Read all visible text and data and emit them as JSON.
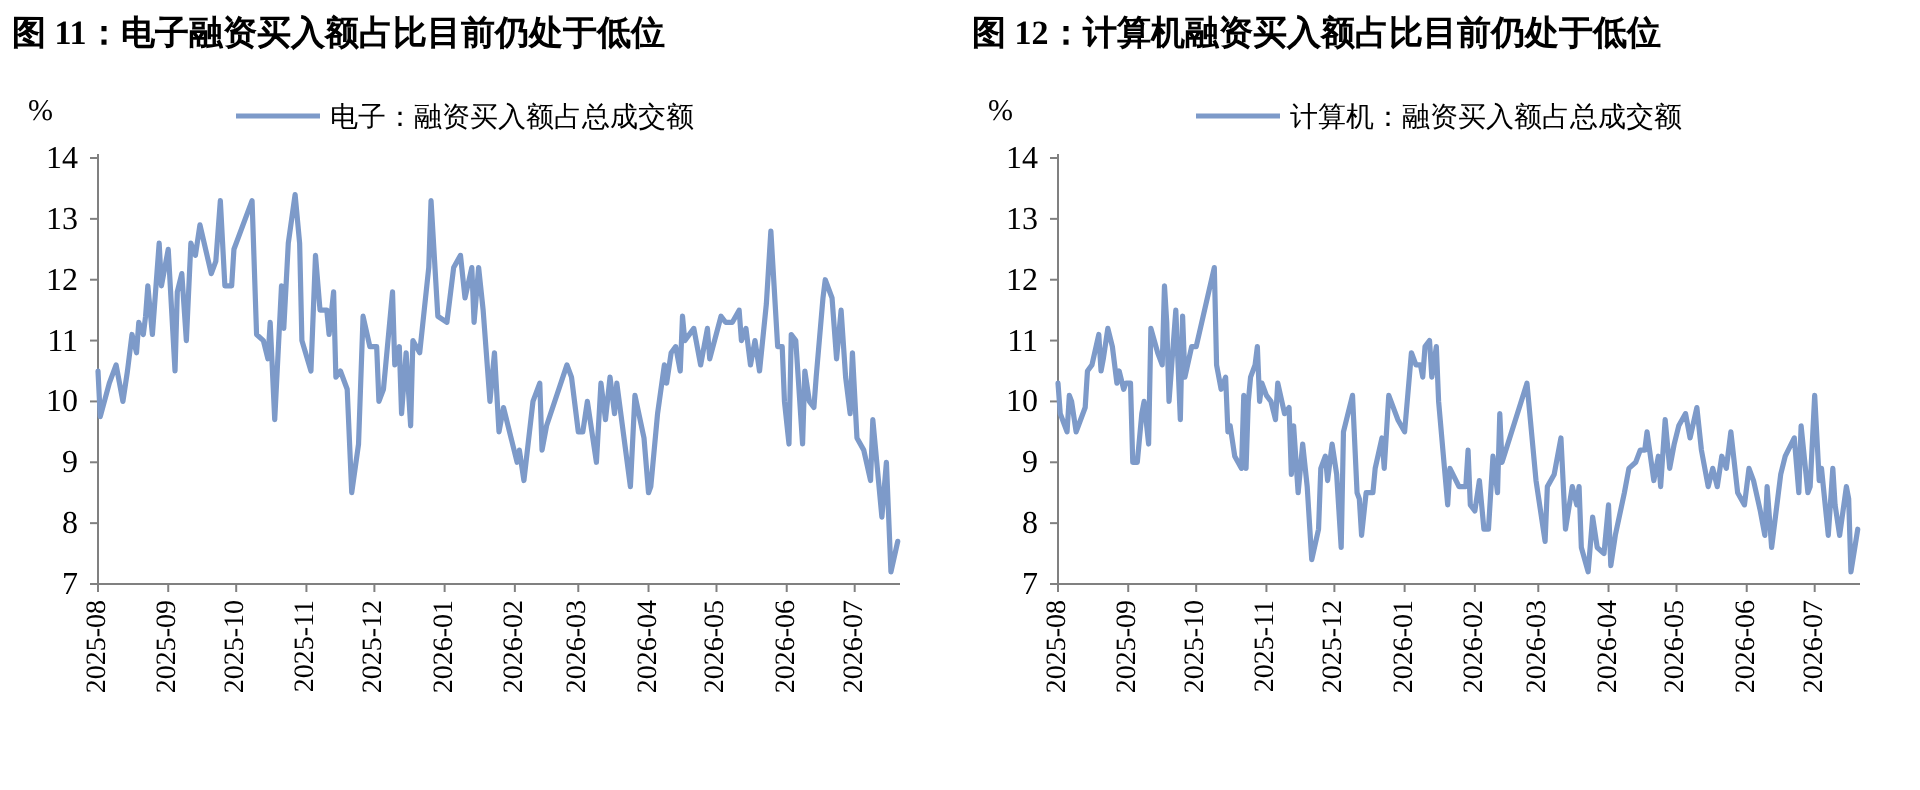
{
  "chart_data": [
    {
      "type": "line",
      "title": "图 11：电子融资买入额占比目前仍处于低位",
      "ylabel": "%",
      "legend": "top",
      "xlim": [
        "2025-08-01",
        "2026-07-21"
      ],
      "ylim": [
        7,
        14
      ],
      "yticks": [
        7,
        8,
        9,
        10,
        11,
        12,
        13,
        14
      ],
      "xticks": [
        "2025-08",
        "2025-09",
        "2025-10",
        "2025-11",
        "2025-12",
        "2026-01",
        "2026-02",
        "2026-03",
        "2026-04",
        "2026-05",
        "2026-06",
        "2026-07"
      ],
      "x": [
        "2025-08-01",
        "2025-08-02",
        "2025-08-06",
        "2025-08-09",
        "2025-08-12",
        "2025-08-14",
        "2025-08-16",
        "2025-08-18",
        "2025-08-19",
        "2025-08-21",
        "2025-08-22",
        "2025-08-23",
        "2025-08-25",
        "2025-08-28",
        "2025-08-29",
        "2025-09-01",
        "2025-09-04",
        "2025-09-05",
        "2025-09-07",
        "2025-09-09",
        "2025-09-11",
        "2025-09-13",
        "2025-09-15",
        "2025-09-20",
        "2025-09-22",
        "2025-09-24",
        "2025-09-26",
        "2025-09-29",
        "2025-09-30",
        "2025-10-08",
        "2025-10-10",
        "2025-10-13",
        "2025-10-15",
        "2025-10-16",
        "2025-10-18",
        "2025-10-21",
        "2025-10-22",
        "2025-10-24",
        "2025-10-27",
        "2025-10-29",
        "2025-10-30",
        "2025-11-03",
        "2025-11-05",
        "2025-11-07",
        "2025-11-10",
        "2025-11-11",
        "2025-11-13",
        "2025-11-14",
        "2025-11-16",
        "2025-11-19",
        "2025-11-21",
        "2025-11-24",
        "2025-11-26",
        "2025-11-29",
        "2025-12-02",
        "2025-12-03",
        "2025-12-05",
        "2025-12-09",
        "2025-12-10",
        "2025-12-12",
        "2025-12-13",
        "2025-12-15",
        "2025-12-17",
        "2025-12-18",
        "2025-12-21",
        "2025-12-25",
        "2025-12-26",
        "2025-12-29",
        "2026-01-02",
        "2026-01-05",
        "2026-01-08",
        "2026-01-10",
        "2026-01-13",
        "2026-01-14",
        "2026-01-16",
        "2026-01-18",
        "2026-01-21",
        "2026-01-23",
        "2026-01-25",
        "2026-01-27",
        "2026-01-29",
        "2026-02-02",
        "2026-02-03",
        "2026-02-05",
        "2026-02-09",
        "2026-02-12",
        "2026-02-13",
        "2026-02-15",
        "2026-02-24",
        "2026-02-26",
        "2026-03-01",
        "2026-03-03",
        "2026-03-05",
        "2026-03-09",
        "2026-03-11",
        "2026-03-13",
        "2026-03-15",
        "2026-03-17",
        "2026-03-18",
        "2026-03-24",
        "2026-03-26",
        "2026-03-30",
        "2026-04-01",
        "2026-04-02",
        "2026-04-05",
        "2026-04-08",
        "2026-04-09",
        "2026-04-11",
        "2026-04-13",
        "2026-04-15",
        "2026-04-16",
        "2026-04-17",
        "2026-04-21",
        "2026-04-24",
        "2026-04-27",
        "2026-04-28",
        "2026-05-03",
        "2026-05-05",
        "2026-05-08",
        "2026-05-11",
        "2026-05-12",
        "2026-05-14",
        "2026-05-16",
        "2026-05-18",
        "2026-05-20",
        "2026-05-23",
        "2026-05-25",
        "2026-05-28",
        "2026-05-30",
        "2026-05-31",
        "2026-06-02",
        "2026-06-03",
        "2026-06-05",
        "2026-06-08",
        "2026-06-09",
        "2026-06-11",
        "2026-06-13",
        "2026-06-14",
        "2026-06-17",
        "2026-06-18",
        "2026-06-21",
        "2026-06-23",
        "2026-06-25",
        "2026-06-27",
        "2026-06-29",
        "2026-06-30",
        "2026-07-02",
        "2026-07-05",
        "2026-07-08",
        "2026-07-09",
        "2026-07-13",
        "2026-07-15",
        "2026-07-17",
        "2026-07-20"
      ],
      "series": [
        {
          "name": "电子：融资买入额占总成交额",
          "color": "#7d9ac9",
          "values": [
            10.5,
            9.75,
            10.3,
            10.6,
            10.0,
            10.5,
            11.1,
            10.8,
            11.3,
            11.1,
            11.4,
            11.9,
            11.1,
            12.6,
            11.9,
            12.5,
            10.5,
            11.8,
            12.1,
            11.0,
            12.6,
            12.4,
            12.9,
            12.1,
            12.3,
            13.3,
            11.9,
            11.9,
            12.5,
            13.3,
            11.1,
            11.0,
            10.7,
            11.3,
            9.7,
            11.9,
            11.2,
            12.6,
            13.4,
            12.6,
            11.0,
            10.5,
            12.4,
            11.5,
            11.5,
            11.1,
            11.8,
            10.4,
            10.5,
            10.2,
            8.5,
            9.3,
            11.4,
            10.9,
            10.9,
            10.0,
            10.2,
            11.8,
            10.6,
            10.9,
            9.8,
            10.8,
            9.6,
            11.0,
            10.8,
            12.2,
            13.3,
            11.4,
            11.3,
            12.2,
            12.4,
            11.7,
            12.2,
            11.3,
            12.2,
            11.5,
            10.0,
            10.8,
            9.5,
            9.9,
            9.6,
            9.0,
            9.2,
            8.7,
            10.0,
            10.3,
            9.2,
            9.6,
            10.6,
            10.4,
            9.5,
            9.5,
            10.0,
            9.0,
            10.3,
            9.7,
            10.4,
            9.8,
            10.3,
            8.6,
            10.1,
            9.4,
            8.5,
            8.6,
            9.8,
            10.6,
            10.3,
            10.8,
            10.9,
            10.5,
            11.4,
            11.0,
            11.2,
            10.6,
            11.2,
            10.7,
            11.4,
            11.3,
            11.3,
            11.5,
            11.0,
            11.2,
            10.6,
            11.0,
            10.5,
            11.6,
            12.8,
            10.9,
            10.9,
            10.0,
            9.3,
            11.1,
            11.0,
            9.3,
            10.5,
            10.0,
            9.9,
            10.4,
            11.7,
            12.0,
            11.7,
            10.7,
            11.5,
            10.4,
            9.8,
            10.8,
            9.4,
            9.2,
            8.7,
            9.7,
            8.1,
            9.0,
            7.2,
            7.7
          ]
        }
      ]
    },
    {
      "type": "line",
      "title": "图 12：计算机融资买入额占比目前仍处于低位",
      "ylabel": "%",
      "legend": "top",
      "xlim": [
        "2025-08-01",
        "2026-07-21"
      ],
      "ylim": [
        7,
        14
      ],
      "yticks": [
        7,
        8,
        9,
        10,
        11,
        12,
        13,
        14
      ],
      "xticks": [
        "2025-08",
        "2025-09",
        "2025-10",
        "2025-11",
        "2025-12",
        "2026-01",
        "2026-02",
        "2026-03",
        "2026-04",
        "2026-05",
        "2026-06",
        "2026-07"
      ],
      "x": [
        "2025-08-01",
        "2025-08-02",
        "2025-08-04",
        "2025-08-05",
        "2025-08-06",
        "2025-08-07",
        "2025-08-09",
        "2025-08-10",
        "2025-08-13",
        "2025-08-14",
        "2025-08-16",
        "2025-08-19",
        "2025-08-20",
        "2025-08-21",
        "2025-08-23",
        "2025-08-25",
        "2025-08-27",
        "2025-08-28",
        "2025-08-30",
        "2025-08-31",
        "2025-09-02",
        "2025-09-03",
        "2025-09-05",
        "2025-09-07",
        "2025-09-08",
        "2025-09-10",
        "2025-09-11",
        "2025-09-14",
        "2025-09-16",
        "2025-09-17",
        "2025-09-18",
        "2025-09-19",
        "2025-09-22",
        "2025-09-24",
        "2025-09-25",
        "2025-09-26",
        "2025-09-29",
        "2025-10-01",
        "2025-10-09",
        "2025-10-10",
        "2025-10-12",
        "2025-10-14",
        "2025-10-15",
        "2025-10-16",
        "2025-10-18",
        "2025-10-21",
        "2025-10-22",
        "2025-10-23",
        "2025-10-24",
        "2025-10-25",
        "2025-10-27",
        "2025-10-28",
        "2025-10-29",
        "2025-10-30",
        "2025-11-01",
        "2025-11-03",
        "2025-11-05",
        "2025-11-06",
        "2025-11-09",
        "2025-11-11",
        "2025-11-12",
        "2025-11-13",
        "2025-11-15",
        "2025-11-17",
        "2025-11-19",
        "2025-11-21",
        "2025-11-24",
        "2025-11-25",
        "2025-11-27",
        "2025-11-28",
        "2025-11-30",
        "2025-12-02",
        "2025-12-04",
        "2025-12-05",
        "2025-12-09",
        "2025-12-11",
        "2025-12-12",
        "2025-12-13",
        "2025-12-15",
        "2025-12-17",
        "2025-12-18",
        "2025-12-19",
        "2025-12-22",
        "2025-12-23",
        "2025-12-25",
        "2025-12-29",
        "2026-01-01",
        "2026-01-04",
        "2026-01-06",
        "2026-01-08",
        "2026-01-09",
        "2026-01-10",
        "2026-01-12",
        "2026-01-13",
        "2026-01-15",
        "2026-01-16",
        "2026-01-20",
        "2026-01-21",
        "2026-01-25",
        "2026-01-28",
        "2026-01-29",
        "2026-01-30",
        "2026-02-01",
        "2026-02-03",
        "2026-02-05",
        "2026-02-07",
        "2026-02-09",
        "2026-02-11",
        "2026-02-12",
        "2026-02-13",
        "2026-02-24",
        "2026-02-28",
        "2026-03-04",
        "2026-03-05",
        "2026-03-08",
        "2026-03-11",
        "2026-03-13",
        "2026-03-16",
        "2026-03-18",
        "2026-03-19",
        "2026-03-20",
        "2026-03-23",
        "2026-03-25",
        "2026-03-27",
        "2026-03-30",
        "2026-04-01",
        "2026-04-02",
        "2026-04-04",
        "2026-04-08",
        "2026-04-10",
        "2026-04-13",
        "2026-04-15",
        "2026-04-17",
        "2026-04-18",
        "2026-04-21",
        "2026-04-23",
        "2026-04-24",
        "2026-04-26",
        "2026-04-28",
        "2026-04-30",
        "2026-05-02",
        "2026-05-05",
        "2026-05-07",
        "2026-05-10",
        "2026-05-12",
        "2026-05-15",
        "2026-05-17",
        "2026-05-19",
        "2026-05-21",
        "2026-05-23",
        "2026-05-25",
        "2026-05-28",
        "2026-05-31",
        "2026-06-02",
        "2026-06-04",
        "2026-06-07",
        "2026-06-09",
        "2026-06-10",
        "2026-06-12",
        "2026-06-16",
        "2026-06-18",
        "2026-06-22",
        "2026-06-24",
        "2026-06-25",
        "2026-06-28",
        "2026-06-29",
        "2026-07-01",
        "2026-07-03",
        "2026-07-04",
        "2026-07-07",
        "2026-07-09",
        "2026-07-10",
        "2026-07-12",
        "2026-07-15",
        "2026-07-16",
        "2026-07-17",
        "2026-07-20"
      ],
      "series": [
        {
          "name": "计算机：融资买入额占总成交额",
          "color": "#7d9ac9",
          "values": [
            10.3,
            9.8,
            9.6,
            9.5,
            10.1,
            10.0,
            9.5,
            9.6,
            9.9,
            10.5,
            10.6,
            11.1,
            10.5,
            10.7,
            11.2,
            10.9,
            10.3,
            10.5,
            10.2,
            10.3,
            10.3,
            9.0,
            9.0,
            9.8,
            10.0,
            9.3,
            11.2,
            10.8,
            10.6,
            11.9,
            11.3,
            10.0,
            11.5,
            9.7,
            11.4,
            10.4,
            10.9,
            10.9,
            12.2,
            10.6,
            10.2,
            10.4,
            9.5,
            9.6,
            9.1,
            8.9,
            10.1,
            8.9,
            10.0,
            10.4,
            10.6,
            10.9,
            10.0,
            10.3,
            10.1,
            10.0,
            9.7,
            10.3,
            9.8,
            9.9,
            8.8,
            9.6,
            8.5,
            9.3,
            8.6,
            7.4,
            7.9,
            8.9,
            9.1,
            8.7,
            9.3,
            8.8,
            7.6,
            9.5,
            10.1,
            8.5,
            8.4,
            7.8,
            8.5,
            8.5,
            8.5,
            8.9,
            9.4,
            8.9,
            10.1,
            9.7,
            9.5,
            10.8,
            10.6,
            10.6,
            10.4,
            10.9,
            11.0,
            10.4,
            10.9,
            10.0,
            8.3,
            8.9,
            8.6,
            8.6,
            9.2,
            8.3,
            8.2,
            8.7,
            7.9,
            7.9,
            9.1,
            8.5,
            9.8,
            9.0,
            10.3,
            8.7,
            7.7,
            8.6,
            8.8,
            9.4,
            7.9,
            8.6,
            8.3,
            8.6,
            7.6,
            7.2,
            8.1,
            7.6,
            7.5,
            8.3,
            7.3,
            7.8,
            8.5,
            8.9,
            9.0,
            9.2,
            9.2,
            9.5,
            8.7,
            9.1,
            8.6,
            9.7,
            8.9,
            9.3,
            9.6,
            9.8,
            9.4,
            9.9,
            9.2,
            8.6,
            8.9,
            8.6,
            9.1,
            8.9,
            9.5,
            8.5,
            8.3,
            8.9,
            8.7,
            8.2,
            7.8,
            8.6,
            7.6,
            8.8,
            9.1,
            9.4,
            8.5,
            9.6,
            8.5,
            8.6,
            10.1,
            8.7,
            8.9,
            7.8,
            8.9,
            8.3,
            7.8,
            8.6,
            8.4,
            7.2,
            7.9
          ]
        }
      ]
    }
  ]
}
